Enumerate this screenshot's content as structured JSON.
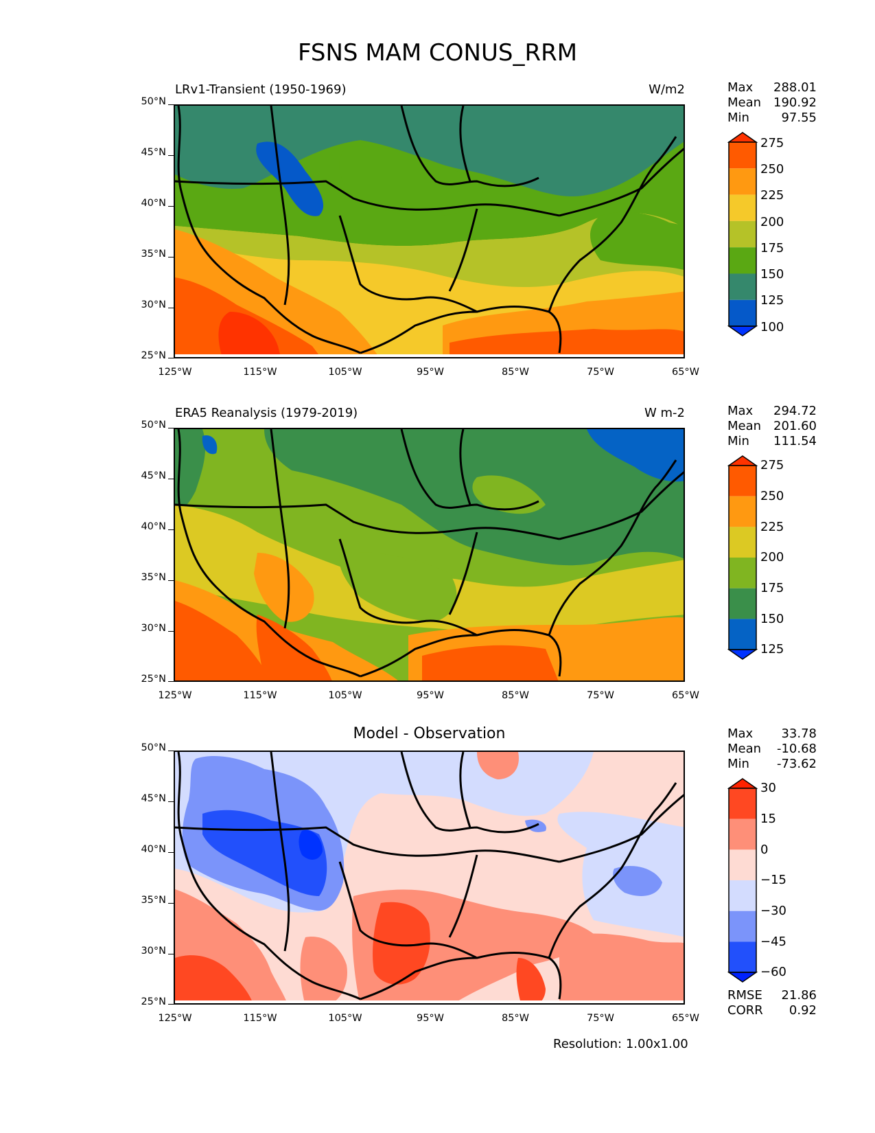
{
  "figure": {
    "title": "FSNS MAM CONUS_RRM",
    "resolution": "Resolution: 1.00x1.00"
  },
  "axes": {
    "lat_labels": [
      "50°N",
      "45°N",
      "40°N",
      "35°N",
      "30°N",
      "25°N"
    ],
    "lon_labels": [
      "125°W",
      "115°W",
      "105°W",
      "95°W",
      "85°W",
      "75°W",
      "65°W"
    ]
  },
  "panels": [
    {
      "title": "LRv1-Transient (1950-1969)",
      "units": "W/m2",
      "stats": {
        "max_label": "Max",
        "max": "288.01",
        "mean_label": "Mean",
        "mean": "190.92",
        "min_label": "Min",
        "min": "97.55"
      },
      "colorbar": {
        "ticks": [
          "275",
          "250",
          "225",
          "200",
          "175",
          "150",
          "125",
          "100"
        ],
        "colors": [
          "#ff5a00",
          "#ff9911",
          "#f5c92a",
          "#b5c228",
          "#5aa813",
          "#35886c",
          "#0559c9"
        ],
        "over": "#ff3300",
        "under": "#0033ff"
      }
    },
    {
      "title": "ERA5 Reanalysis (1979-2019)",
      "units": "W m-2",
      "stats": {
        "max_label": "Max",
        "max": "294.72",
        "mean_label": "Mean",
        "mean": "201.60",
        "min_label": "Min",
        "min": "111.54"
      },
      "colorbar": {
        "ticks": [
          "275",
          "250",
          "225",
          "200",
          "175",
          "150",
          "125"
        ],
        "colors": [
          "#ff5a00",
          "#ff9911",
          "#dcc923",
          "#80b521",
          "#3a8f4a",
          "#0563c5"
        ],
        "over": "#ff3300",
        "under": "#0033ff"
      }
    },
    {
      "title": "Model - Observation",
      "stats": {
        "max_label": "Max",
        "max": "33.78",
        "mean_label": "Mean",
        "mean": "-10.68",
        "min_label": "Min",
        "min": "-73.62"
      },
      "errors": {
        "rmse_label": "RMSE",
        "rmse": "21.86",
        "corr_label": "CORR",
        "corr": "0.92"
      },
      "colorbar": {
        "ticks": [
          "30",
          "15",
          "0",
          "−15",
          "−30",
          "−45",
          "−60"
        ],
        "colors": [
          "#ff4822",
          "#fe8f78",
          "#fedbd3",
          "#d3dcfe",
          "#7b94fa",
          "#2250fb"
        ],
        "over": "#ff2200",
        "under": "#0022ff"
      }
    }
  ]
}
